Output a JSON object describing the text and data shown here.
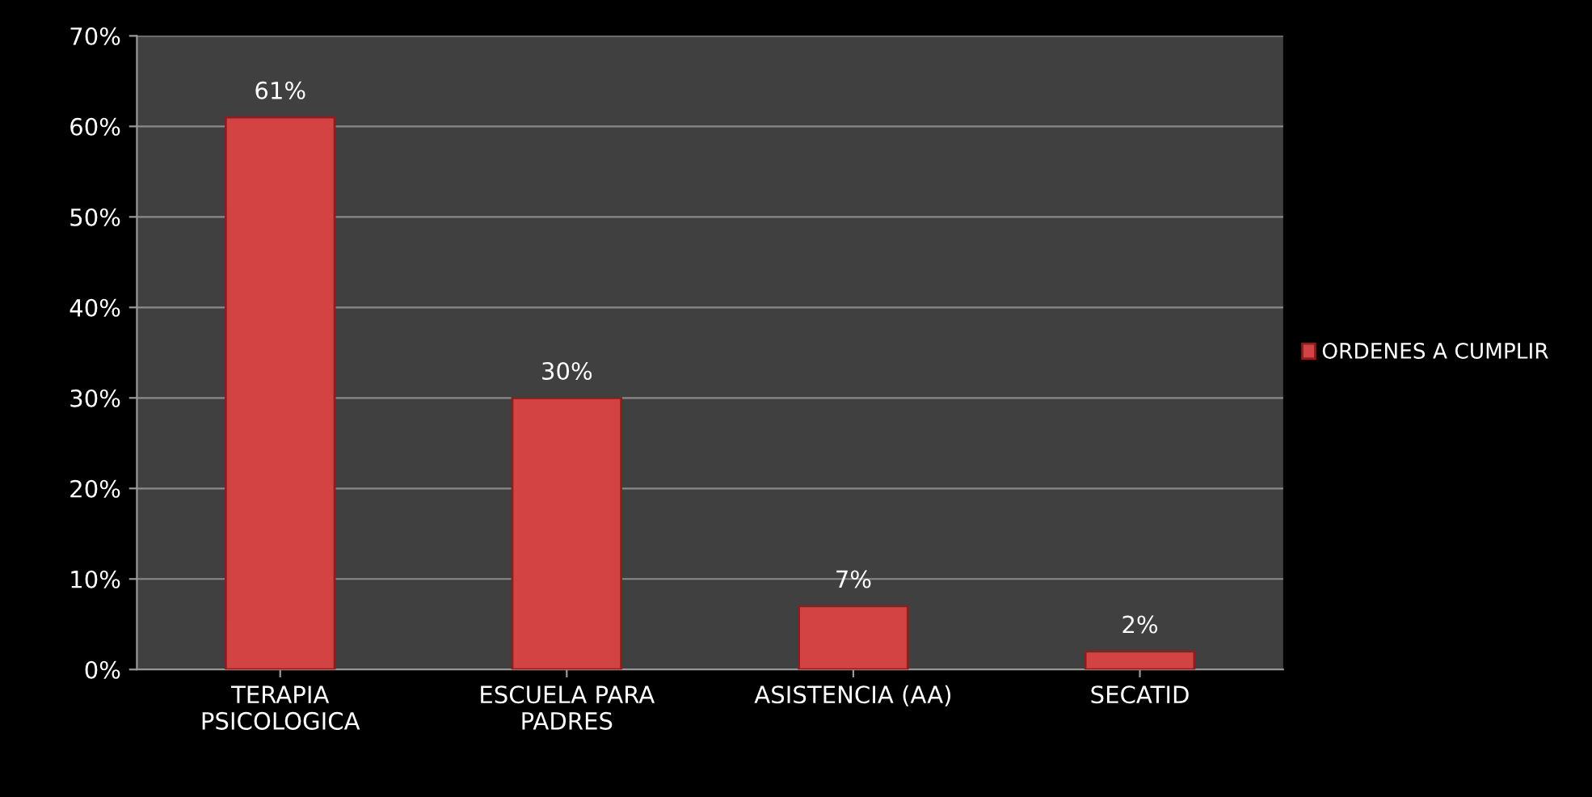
{
  "chart_data": {
    "type": "bar",
    "categories": [
      "TERAPIA\nPSICOLOGICA",
      "ESCUELA PARA\nPADRES",
      "ASISTENCIA (AA)",
      "SECATID"
    ],
    "series": [
      {
        "name": "ORDENES A CUMPLIR",
        "color": "#d44343",
        "values": [
          61,
          30,
          7,
          2
        ],
        "value_labels": [
          "61%",
          "30%",
          "7%",
          "2%"
        ]
      }
    ],
    "ylim": [
      0,
      70
    ],
    "yticks": [
      {
        "value": 0,
        "label": "0%"
      },
      {
        "value": 10,
        "label": "10%"
      },
      {
        "value": 20,
        "label": "20%"
      },
      {
        "value": 30,
        "label": "30%"
      },
      {
        "value": 40,
        "label": "40%"
      },
      {
        "value": 50,
        "label": "50%"
      },
      {
        "value": 60,
        "label": "60%"
      },
      {
        "value": 70,
        "label": "70%"
      }
    ],
    "grid": "y",
    "legend": "right"
  }
}
